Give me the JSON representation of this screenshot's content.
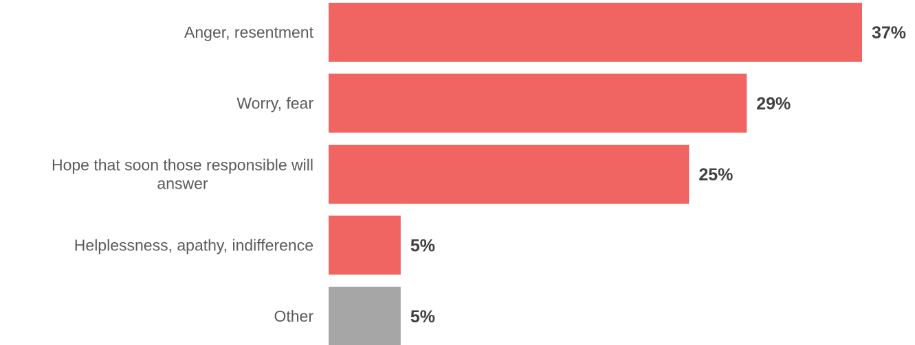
{
  "chart_data": {
    "type": "bar",
    "orientation": "horizontal",
    "categories": [
      "Anger, resentment",
      "Worry, fear",
      "Hope that soon those responsible will answer",
      "Helplessness, apathy, indifference",
      "Other"
    ],
    "category_label_lines": [
      [
        "Anger, resentment"
      ],
      [
        "Worry, fear"
      ],
      [
        "Hope that soon those responsible will",
        "answer"
      ],
      [
        "Helplessness, apathy, indifference"
      ],
      [
        "Other"
      ]
    ],
    "values": [
      37,
      29,
      25,
      5,
      5
    ],
    "value_labels": [
      "37%",
      "29%",
      "25%",
      "5%",
      "5%"
    ],
    "bar_colors": [
      "#f06461",
      "#f06461",
      "#f06461",
      "#f06461",
      "#a6a6a6"
    ],
    "xlim": [
      0,
      37
    ],
    "grid": false,
    "legend": "none"
  }
}
